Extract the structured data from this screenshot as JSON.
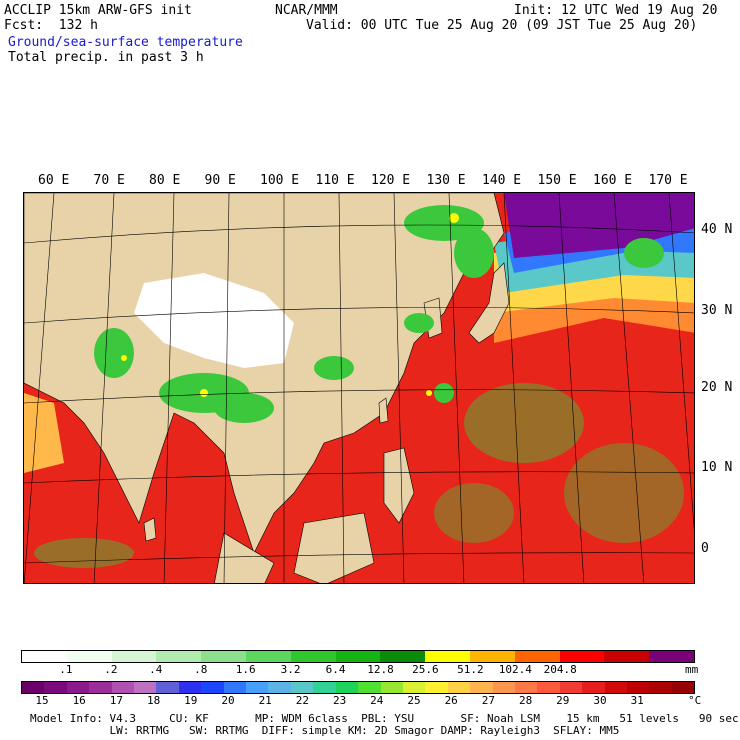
{
  "header": {
    "left_line1": "ACCLIP 15km ARW-GFS init",
    "center_line1": "NCAR/MMM",
    "right_line1": "Init: 12 UTC Wed 19 Aug 20",
    "left_line2": "Fcst:  132 h",
    "right_line2": "Valid: 00 UTC Tue 25 Aug 20 (09 JST Tue 25 Aug 20)",
    "field1": "Ground/sea-surface temperature",
    "field2": "Total precip. in past 3 h",
    "field1_color": "#1a1acc"
  },
  "map": {
    "longitude_labels": [
      "60 E",
      "70 E",
      "80 E",
      "90 E",
      "100 E",
      "110 E",
      "120 E",
      "130 E",
      "140 E",
      "150 E",
      "160 E",
      "170 E"
    ],
    "latitude_labels": [
      "40 N",
      "30 N",
      "20 N",
      "10 N",
      "0"
    ],
    "features": {
      "land_color": "#e8d3a8",
      "plateau_color": "#ffffff",
      "ocean_warm_color": "#e8251a",
      "ocean_cool_color": "#7a0a9a",
      "precip_color": "#3cc83c"
    }
  },
  "precip_scale": {
    "ticks": [
      ".1",
      ".2",
      ".4",
      ".8",
      "1.6",
      "3.2",
      "6.4",
      "12.8",
      "25.6",
      "51.2",
      "102.4",
      "204.8"
    ],
    "unit": "mm",
    "colors": [
      "#ffffff",
      "#f0fff0",
      "#d6f5d6",
      "#b0ecb0",
      "#8ce08c",
      "#5cd65c",
      "#2ec82e",
      "#14b414",
      "#0a8c0a",
      "#ffff00",
      "#ffb400",
      "#ff6400",
      "#ff0000",
      "#c80000",
      "#7a0078"
    ]
  },
  "temp_scale": {
    "ticks": [
      "15",
      "16",
      "17",
      "18",
      "19",
      "20",
      "21",
      "22",
      "23",
      "24",
      "25",
      "26",
      "27",
      "28",
      "29",
      "30",
      "31"
    ],
    "unit": "°C",
    "colors": [
      "#6a006a",
      "#7c0a7c",
      "#8c1a8c",
      "#9c2e9c",
      "#b050b0",
      "#c070c0",
      "#6060d8",
      "#3030f0",
      "#1e46ff",
      "#3278ff",
      "#46a0ff",
      "#5ab4e6",
      "#5ac8c8",
      "#32d296",
      "#1ed25a",
      "#50e032",
      "#96e632",
      "#dcf032",
      "#fff032",
      "#ffd246",
      "#ffb450",
      "#ff9650",
      "#ff7846",
      "#ff5a3c",
      "#f03c32",
      "#e61e1e",
      "#d20a0a",
      "#be0000",
      "#aa0000",
      "#960000"
    ]
  },
  "model_info": {
    "line1": "Model Info: V4.3     CU: KF       MP: WDM 6class  PBL: YSU       SF: Noah LSM    15 km   51 levels   90 sec",
    "line2": "            LW: RRTMG   SW: RRTMG  DIFF: simple KM: 2D Smagor DAMP: Rayleigh3  SFLAY: MM5"
  }
}
